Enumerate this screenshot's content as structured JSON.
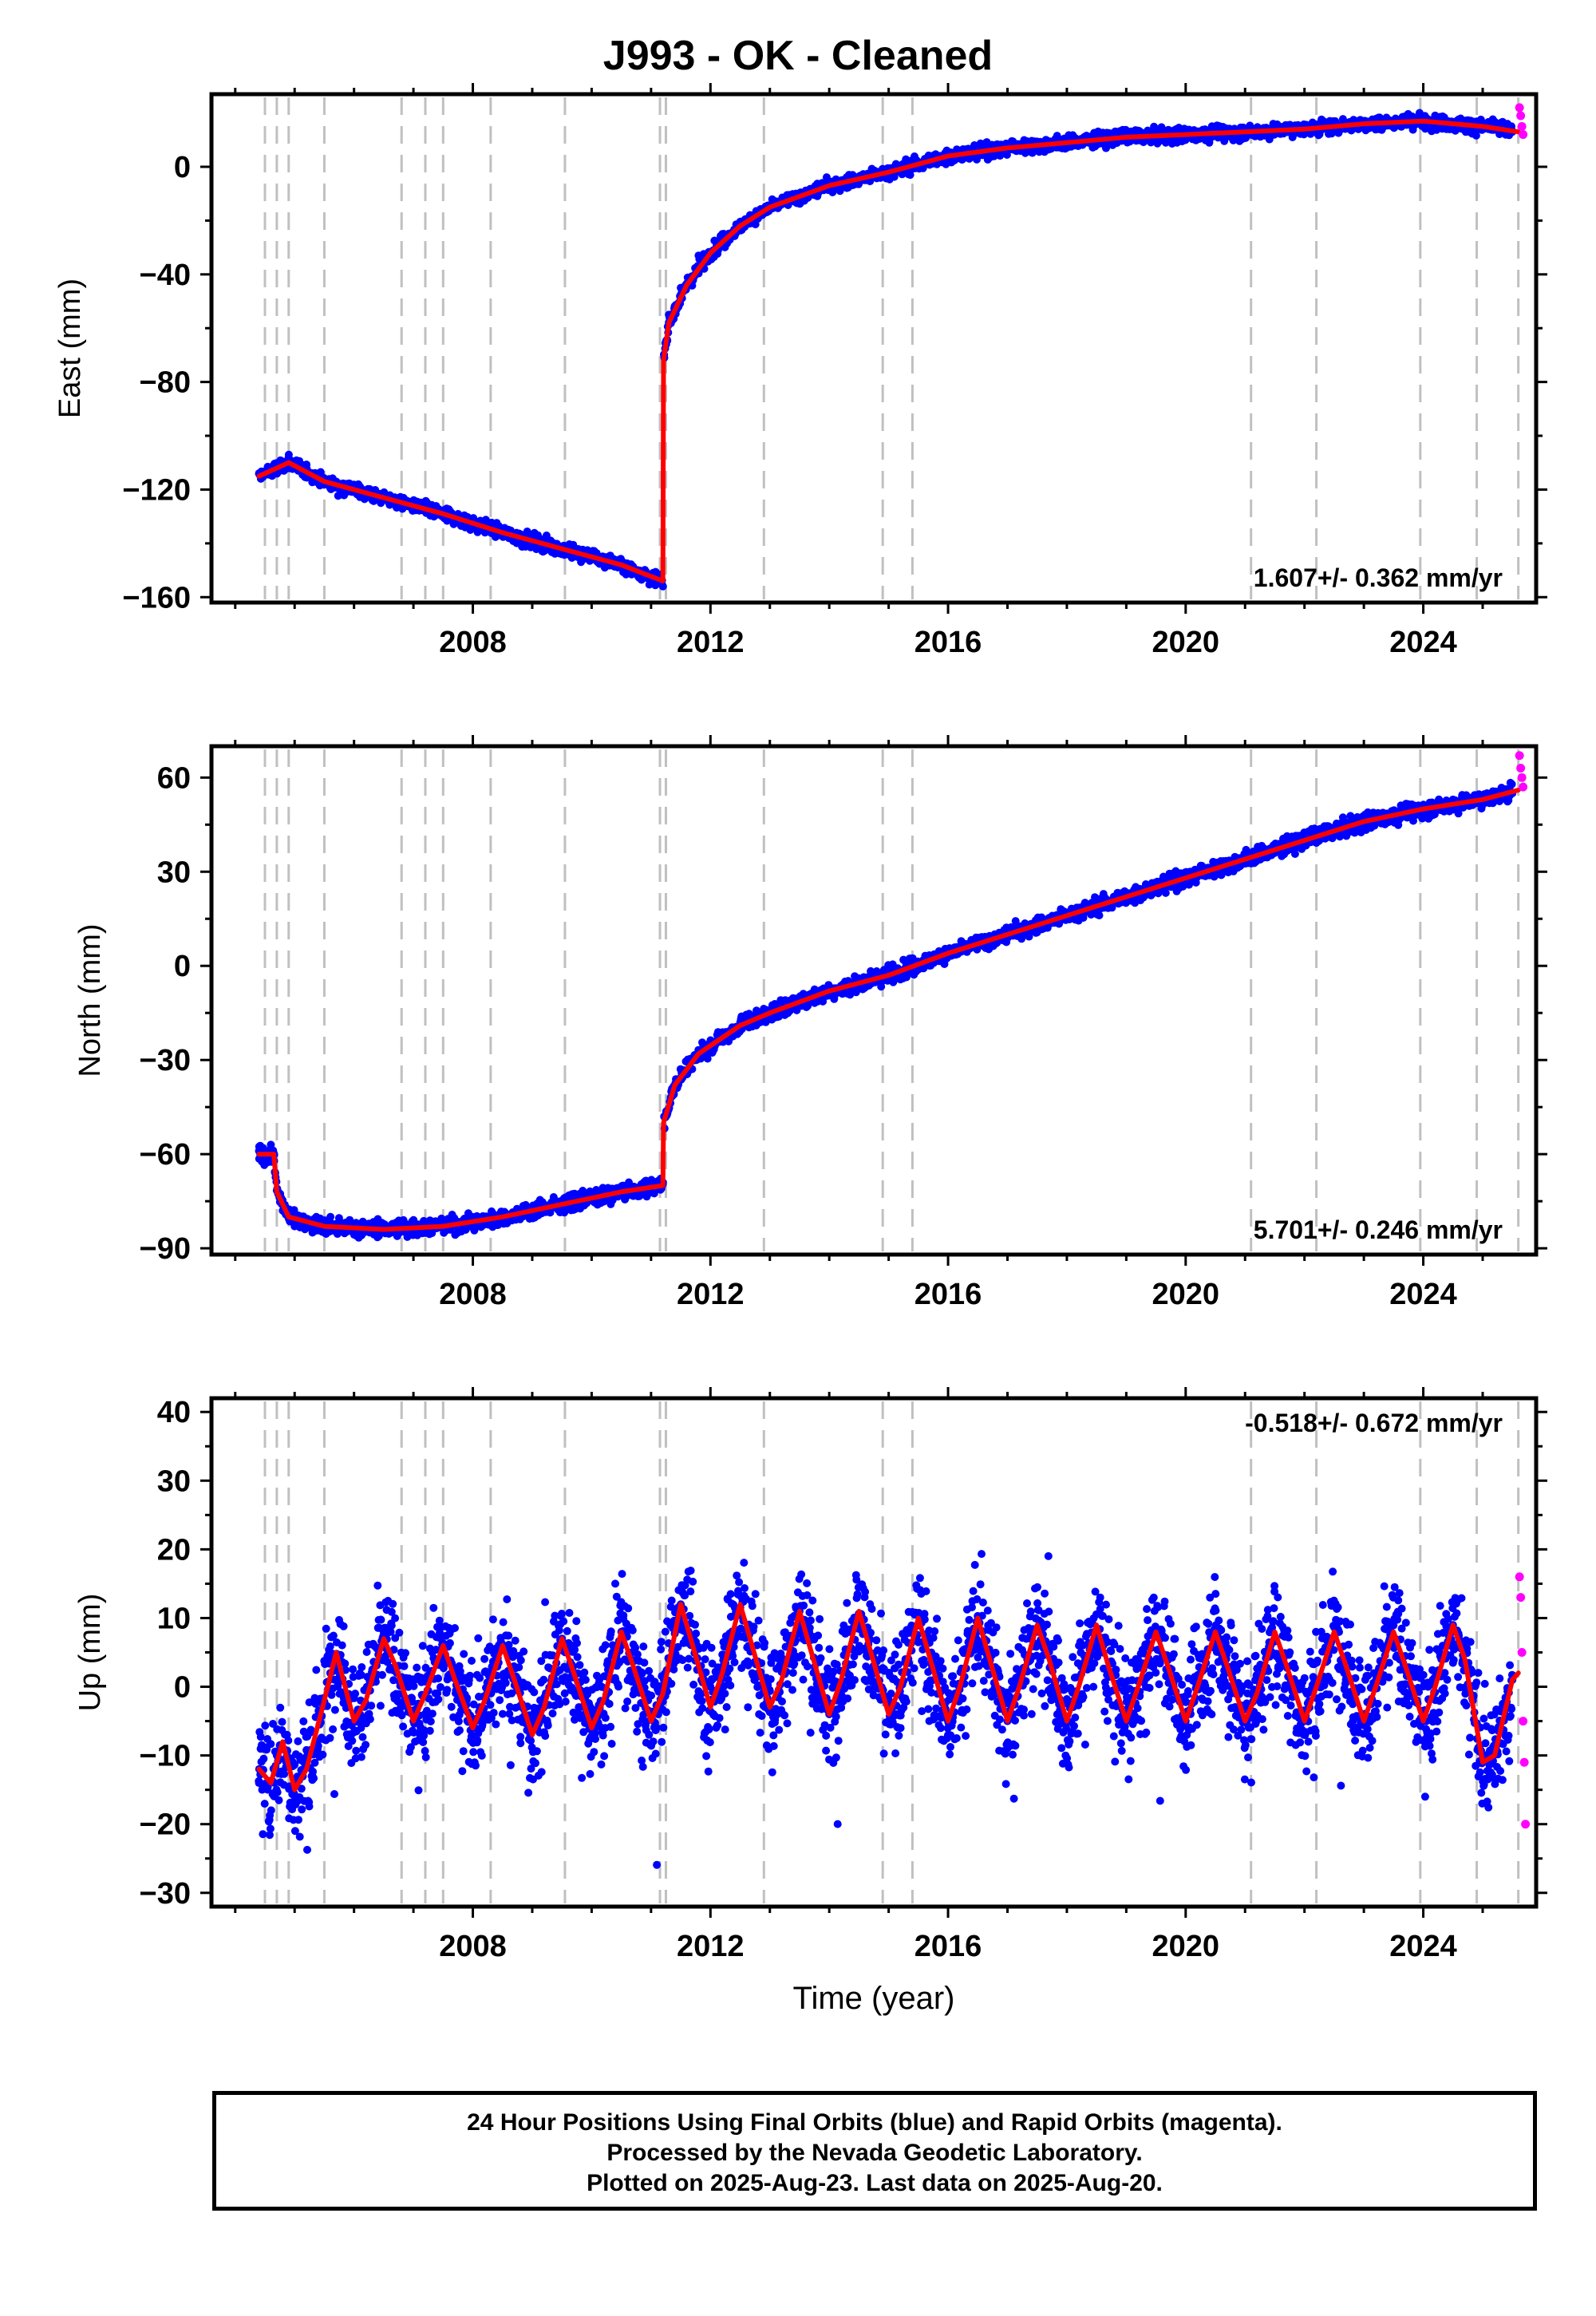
{
  "title": "J993  - OK - Cleaned",
  "colors": {
    "final_orbits": "#0000ff",
    "rapid_orbits": "#ff00ff",
    "model_fit": "#ff0000",
    "event_lines": "#c0c0c0",
    "frame": "#000000"
  },
  "chart_data": [
    {
      "type": "scatter",
      "panel": "east",
      "ylabel": "East (mm)",
      "xlabel": "",
      "xlim": [
        2003.6,
        2025.9
      ],
      "ylim": [
        -162,
        27
      ],
      "xticks": [
        2008,
        2012,
        2016,
        2020,
        2024
      ],
      "yticks": [
        0,
        -40,
        -80,
        -120,
        -160
      ],
      "rate_label": "1.607+/- 0.362 mm/yr",
      "rate_position": "bottom-right",
      "grid": false,
      "event_lines": [
        2004.5,
        2004.7,
        2004.9,
        2005.5,
        2006.8,
        2007.2,
        2007.5,
        2008.3,
        2009.55,
        2011.15,
        2011.25,
        2012.9,
        2014.9,
        2015.4,
        2021.1,
        2022.2,
        2023.95,
        2024.9,
        2025.6
      ],
      "series": [
        {
          "name": "Final Orbits",
          "role": "final",
          "x": [
            2004.4,
            2004.6,
            2004.9,
            2005.2,
            2005.5,
            2005.9,
            2006.2,
            2006.6,
            2006.9,
            2007.3,
            2007.6,
            2007.9,
            2008.3,
            2008.7,
            2009.0,
            2009.4,
            2009.8,
            2010.2,
            2010.6,
            2011.0,
            2011.2,
            2011.22,
            2011.3,
            2011.5,
            2011.8,
            2012.2,
            2012.6,
            2013.0,
            2013.5,
            2014.0,
            2014.5,
            2015.0,
            2015.5,
            2016.0,
            2016.5,
            2017.0,
            2017.5,
            2018.0,
            2018.5,
            2019.0,
            2019.5,
            2020.0,
            2020.5,
            2021.0,
            2021.5,
            2022.0,
            2022.5,
            2023.0,
            2023.5,
            2024.0,
            2024.5,
            2025.0,
            2025.5
          ],
          "y": [
            -114,
            -112,
            -109,
            -113,
            -117,
            -118,
            -121,
            -124,
            -125,
            -128,
            -130,
            -132,
            -135,
            -138,
            -140,
            -142,
            -145,
            -148,
            -151,
            -153,
            -156,
            -70,
            -55,
            -45,
            -33,
            -25,
            -20,
            -15,
            -11,
            -7,
            -4,
            -2,
            0,
            4,
            5,
            6,
            7,
            8,
            9,
            10,
            11,
            12,
            13,
            13,
            14,
            14,
            15,
            16,
            17,
            17,
            15,
            14,
            13
          ]
        },
        {
          "name": "Rapid Orbits",
          "role": "rapid",
          "x": [
            2025.62,
            2025.64,
            2025.66,
            2025.68
          ],
          "y": [
            22,
            19,
            15,
            12
          ]
        },
        {
          "name": "Model",
          "role": "fit",
          "x": [
            2004.4,
            2004.9,
            2005.5,
            2006.5,
            2007.5,
            2008.5,
            2009.5,
            2010.5,
            2011.2,
            2011.21,
            2011.3,
            2011.6,
            2012.0,
            2012.5,
            2013.0,
            2014.0,
            2015.0,
            2016.0,
            2017.0,
            2018.0,
            2019.0,
            2020.0,
            2021.0,
            2022.0,
            2023.0,
            2024.0,
            2025.0,
            2025.6
          ],
          "y": [
            -115,
            -110,
            -117,
            -123,
            -129,
            -136,
            -142,
            -148,
            -154,
            -72,
            -58,
            -44,
            -32,
            -22,
            -15,
            -7,
            -2,
            4,
            7,
            9,
            11,
            12,
            13,
            14,
            16,
            17,
            15,
            13
          ]
        }
      ]
    },
    {
      "type": "scatter",
      "panel": "north",
      "ylabel": "North (mm)",
      "xlabel": "",
      "xlim": [
        2003.6,
        2025.9
      ],
      "ylim": [
        -92,
        70
      ],
      "xticks": [
        2008,
        2012,
        2016,
        2020,
        2024
      ],
      "yticks": [
        60,
        30,
        0,
        -30,
        -60,
        -90
      ],
      "rate_label": "5.701+/- 0.246 mm/yr",
      "rate_position": "bottom-right",
      "grid": false,
      "event_lines": [
        2004.5,
        2004.7,
        2004.9,
        2005.5,
        2006.8,
        2007.2,
        2007.5,
        2008.3,
        2009.55,
        2011.15,
        2011.25,
        2012.9,
        2014.9,
        2015.4,
        2021.1,
        2022.2,
        2023.95,
        2024.9,
        2025.6
      ],
      "series": [
        {
          "name": "Final Orbits",
          "role": "final",
          "x": [
            2004.4,
            2004.6,
            2004.8,
            2005.0,
            2005.3,
            2005.6,
            2006.0,
            2006.5,
            2007.0,
            2007.5,
            2008.0,
            2008.5,
            2009.0,
            2009.5,
            2010.0,
            2010.5,
            2011.0,
            2011.2,
            2011.22,
            2011.4,
            2011.7,
            2012.0,
            2012.5,
            2013.0,
            2013.5,
            2014.0,
            2014.5,
            2015.0,
            2015.5,
            2016.0,
            2016.5,
            2017.0,
            2017.5,
            2018.0,
            2018.5,
            2019.0,
            2019.5,
            2020.0,
            2020.5,
            2021.0,
            2021.5,
            2022.0,
            2022.5,
            2023.0,
            2023.5,
            2024.0,
            2024.5,
            2025.0,
            2025.5
          ],
          "y": [
            -59,
            -57,
            -78,
            -83,
            -85,
            -83,
            -84,
            -83,
            -84,
            -82,
            -80,
            -79,
            -77,
            -75,
            -73,
            -71,
            -70,
            -69,
            -48,
            -38,
            -30,
            -26,
            -20,
            -15,
            -12,
            -8,
            -5,
            -3,
            0,
            4,
            7,
            10,
            13,
            16,
            19,
            22,
            25,
            28,
            30,
            33,
            36,
            39,
            43,
            46,
            48,
            51,
            53,
            54,
            55
          ]
        },
        {
          "name": "Rapid Orbits",
          "role": "rapid",
          "x": [
            2025.62,
            2025.64,
            2025.66,
            2025.68
          ],
          "y": [
            67,
            63,
            60,
            57
          ]
        },
        {
          "name": "Model",
          "role": "fit",
          "x": [
            2004.4,
            2004.65,
            2004.7,
            2004.9,
            2005.5,
            2006.5,
            2007.5,
            2008.5,
            2009.5,
            2010.5,
            2011.2,
            2011.21,
            2011.4,
            2011.8,
            2012.5,
            2013.0,
            2014.0,
            2015.0,
            2016.0,
            2017.0,
            2018.0,
            2019.0,
            2020.0,
            2021.0,
            2022.0,
            2023.0,
            2024.0,
            2025.0,
            2025.6
          ],
          "y": [
            -60,
            -60,
            -72,
            -80,
            -83,
            -84,
            -83,
            -80,
            -76,
            -72,
            -70,
            -50,
            -38,
            -28,
            -19,
            -15,
            -8,
            -3,
            4,
            10,
            16,
            22,
            28,
            34,
            40,
            46,
            50,
            53,
            56
          ]
        }
      ]
    },
    {
      "type": "scatter",
      "panel": "up",
      "ylabel": "Up (mm)",
      "xlabel": "Time (year)",
      "xlim": [
        2003.6,
        2025.9
      ],
      "ylim": [
        -32,
        42
      ],
      "xticks": [
        2008,
        2012,
        2016,
        2020,
        2024
      ],
      "yticks": [
        40,
        30,
        20,
        10,
        0,
        -10,
        -20,
        -30
      ],
      "rate_label": "-0.518+/- 0.672 mm/yr",
      "rate_position": "top-right",
      "grid": false,
      "event_lines": [
        2004.5,
        2004.7,
        2004.9,
        2005.5,
        2006.8,
        2007.2,
        2007.5,
        2008.3,
        2009.55,
        2011.15,
        2011.25,
        2012.9,
        2014.9,
        2015.4,
        2021.1,
        2022.2,
        2023.95,
        2024.9,
        2025.6
      ],
      "series": [
        {
          "name": "Final Orbits",
          "role": "final",
          "x": [
            2004.4,
            2004.7,
            2005.0,
            2005.3,
            2005.6,
            2006.0,
            2006.5,
            2007.0,
            2007.5,
            2008.0,
            2008.5,
            2009.0,
            2009.5,
            2010.0,
            2010.5,
            2011.0,
            2011.5,
            2012.0,
            2012.5,
            2013.0,
            2013.5,
            2014.0,
            2014.5,
            2015.0,
            2015.5,
            2016.0,
            2016.5,
            2017.0,
            2017.5,
            2018.0,
            2018.5,
            2019.0,
            2019.5,
            2020.0,
            2020.5,
            2021.0,
            2021.5,
            2022.0,
            2022.5,
            2023.0,
            2023.5,
            2024.0,
            2024.5,
            2025.0,
            2025.5
          ],
          "y": [
            -14,
            -10,
            -16,
            -13,
            2,
            -4,
            6,
            -5,
            5,
            -6,
            6,
            -6,
            7,
            -5,
            8,
            -4,
            12,
            0,
            11,
            -3,
            11,
            -4,
            10,
            -5,
            9,
            -5,
            9,
            -5,
            8,
            -5,
            8,
            -5,
            8,
            -5,
            7,
            -5,
            7,
            -5,
            7,
            -5,
            7,
            -4,
            9,
            -10,
            1
          ]
        },
        {
          "name": "Rapid Orbits",
          "role": "rapid",
          "x": [
            2025.62,
            2025.64,
            2025.66,
            2025.68,
            2025.7,
            2025.72
          ],
          "y": [
            16,
            13,
            5,
            -5,
            -11,
            -20
          ]
        },
        {
          "name": "Model",
          "role": "fit",
          "x": [
            2004.4,
            2004.6,
            2004.8,
            2005.0,
            2005.2,
            2005.5,
            2005.7,
            2006.0,
            2006.2,
            2006.5,
            2006.7,
            2007.0,
            2007.2,
            2007.5,
            2007.7,
            2008.0,
            2008.2,
            2008.5,
            2008.7,
            2009.0,
            2009.2,
            2009.5,
            2009.7,
            2010.0,
            2010.2,
            2010.5,
            2010.7,
            2011.0,
            2011.2,
            2011.5,
            2011.7,
            2012.0,
            2012.2,
            2012.5,
            2012.7,
            2013.0,
            2013.2,
            2013.5,
            2013.7,
            2014.0,
            2014.2,
            2014.5,
            2014.7,
            2015.0,
            2015.2,
            2015.5,
            2015.7,
            2016.0,
            2016.2,
            2016.5,
            2016.7,
            2017.0,
            2017.2,
            2017.5,
            2017.7,
            2018.0,
            2018.2,
            2018.5,
            2018.7,
            2019.0,
            2019.2,
            2019.5,
            2019.7,
            2020.0,
            2020.2,
            2020.5,
            2020.7,
            2021.0,
            2021.2,
            2021.5,
            2021.7,
            2022.0,
            2022.2,
            2022.5,
            2022.7,
            2023.0,
            2023.2,
            2023.5,
            2023.7,
            2024.0,
            2024.2,
            2024.5,
            2024.7,
            2025.0,
            2025.2,
            2025.5,
            2025.6
          ],
          "y": [
            -12,
            -14,
            -8,
            -15,
            -12,
            -2,
            5,
            -5,
            -2,
            7,
            3,
            -5,
            -1,
            6,
            1,
            -6,
            -2,
            6,
            1,
            -7,
            -3,
            7,
            2,
            -6,
            -2,
            8,
            3,
            -5,
            -1,
            12,
            6,
            -3,
            2,
            12,
            6,
            -3,
            1,
            11,
            5,
            -4,
            1,
            11,
            5,
            -4,
            0,
            10,
            4,
            -5,
            0,
            10,
            4,
            -5,
            0,
            9,
            4,
            -5,
            0,
            9,
            3,
            -5,
            0,
            8,
            3,
            -5,
            0,
            8,
            3,
            -5,
            -1,
            8,
            3,
            -5,
            0,
            8,
            3,
            -5,
            0,
            8,
            3,
            -5,
            0,
            9,
            4,
            -11,
            -10,
            1,
            2
          ]
        }
      ]
    }
  ],
  "footer": {
    "line1": "24 Hour Positions Using Final Orbits (blue) and Rapid Orbits (magenta).",
    "line2": "Processed by the Nevada Geodetic Laboratory.",
    "line3": "Plotted on 2025-Aug-23. Last data on 2025-Aug-20."
  }
}
